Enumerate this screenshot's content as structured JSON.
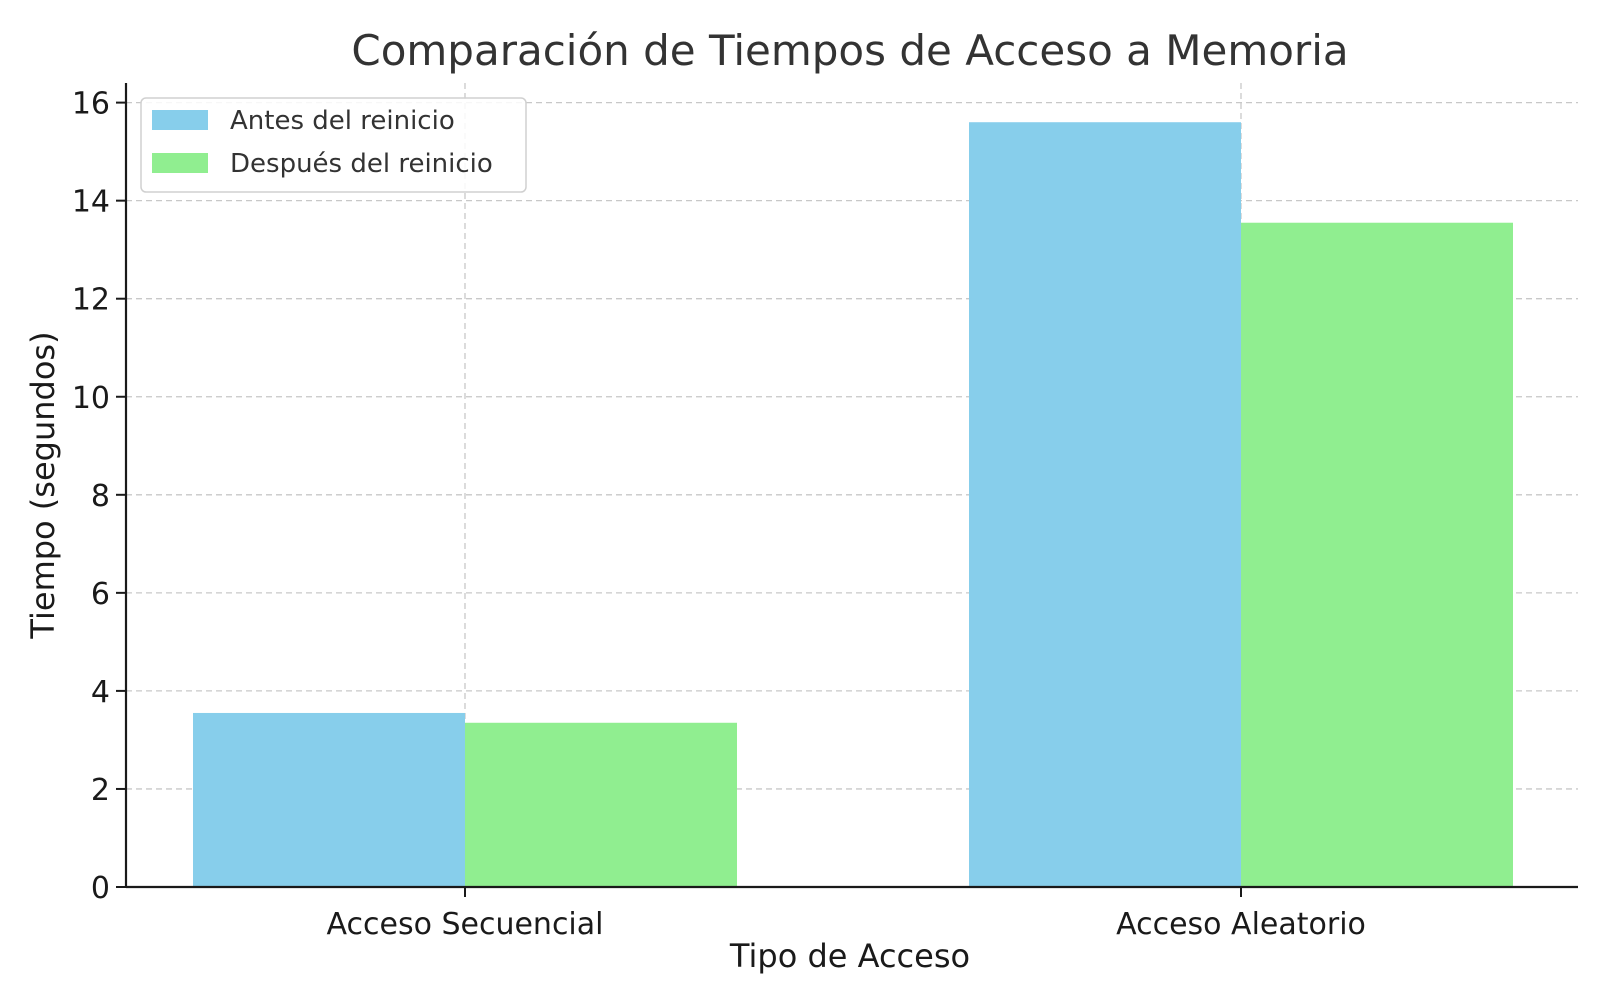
{
  "chart_data": {
    "type": "bar",
    "title": "Comparación de Tiempos de Acceso a Memoria",
    "xlabel": "Tipo de Acceso",
    "ylabel": "Tiempo (segundos)",
    "categories": [
      "Acceso Secuencial",
      "Acceso Aleatorio"
    ],
    "series": [
      {
        "name": "Antes del reinicio",
        "color": "#87CEEB",
        "values": [
          3.55,
          15.6
        ]
      },
      {
        "name": "Después del reinicio",
        "color": "#90EE90",
        "values": [
          3.35,
          13.55
        ]
      }
    ],
    "ylim": [
      0,
      16.4
    ],
    "yticks": [
      0,
      2,
      4,
      6,
      8,
      10,
      12,
      14,
      16
    ],
    "grid": true,
    "legend_position": "top-left"
  }
}
